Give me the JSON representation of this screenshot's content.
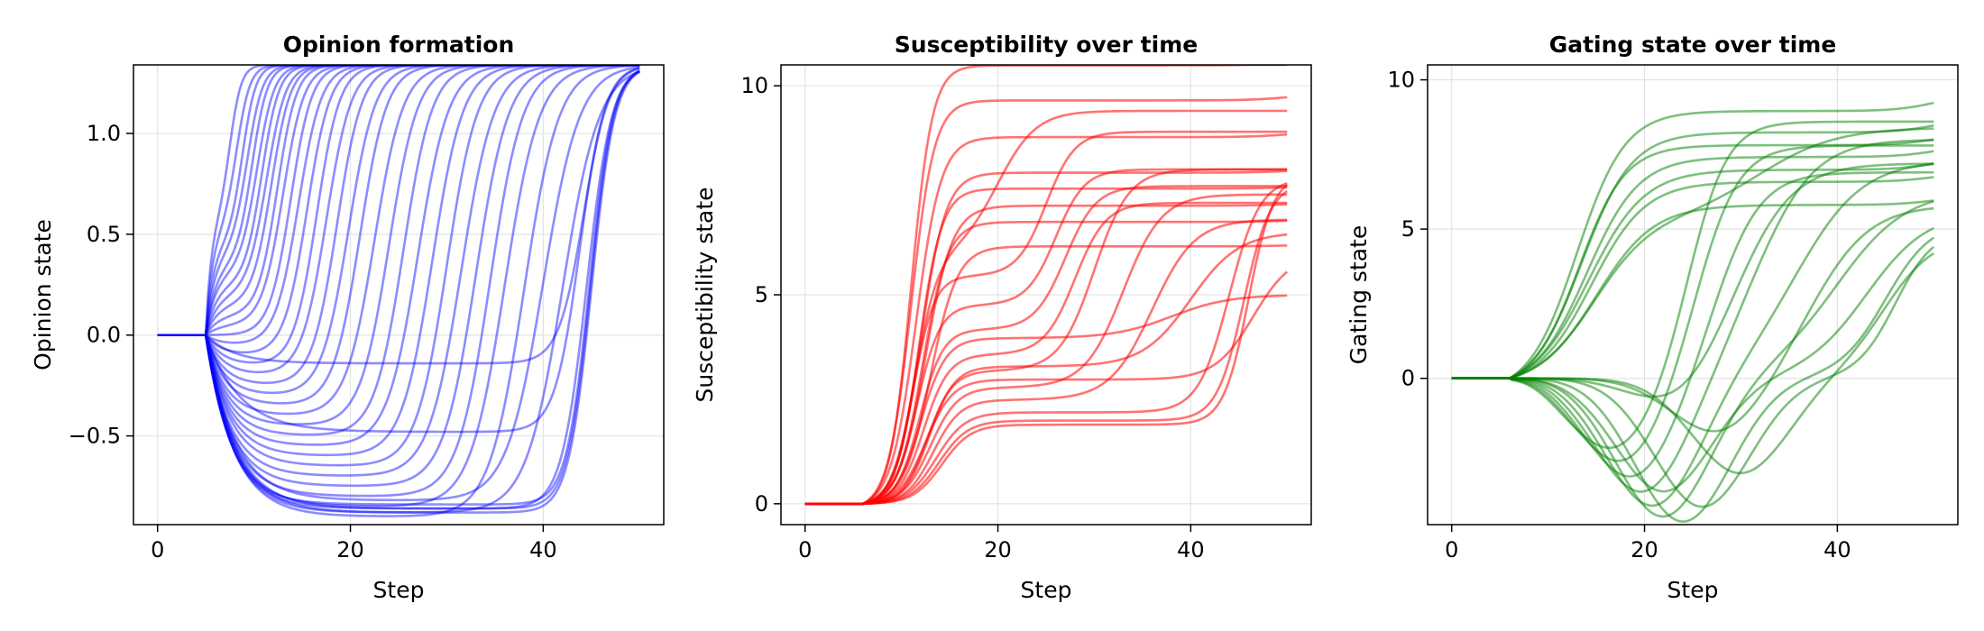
{
  "chart_data": [
    {
      "type": "line",
      "title": "Opinion formation",
      "xlabel": "Step",
      "ylabel": "Opinion state",
      "xlim": [
        -2.5,
        52.5
      ],
      "ylim": [
        -0.94,
        1.34
      ],
      "xticks": [
        0,
        20,
        40
      ],
      "xtick_labels": [
        "0",
        "20",
        "40"
      ],
      "yticks": [
        -0.5,
        0.0,
        0.5,
        1.0
      ],
      "ytick_labels": [
        "−0.5",
        "0.0",
        "0.5",
        "1.0"
      ],
      "grid": true,
      "line_color": "#0000ff",
      "line_opacity": 0.45,
      "n_steps": 50,
      "series": [
        {
          "onset": 5,
          "early_target": 0.55,
          "early_tau": 0.6,
          "plateau": 0.55,
          "final": 1.34,
          "switch_step": 7.5,
          "switch_width": 0.6
        },
        {
          "onset": 5,
          "early_target": 0.5,
          "early_tau": 0.7,
          "plateau": 0.5,
          "final": 1.34,
          "switch_step": 8.2,
          "switch_width": 0.7
        },
        {
          "onset": 5,
          "early_target": 0.45,
          "early_tau": 0.8,
          "plateau": 0.45,
          "final": 1.34,
          "switch_step": 8.8,
          "switch_width": 0.7
        },
        {
          "onset": 5,
          "early_target": 0.4,
          "early_tau": 0.9,
          "plateau": 0.4,
          "final": 1.34,
          "switch_step": 9.3,
          "switch_width": 0.8
        },
        {
          "onset": 5,
          "early_target": 0.35,
          "early_tau": 1.0,
          "plateau": 0.35,
          "final": 1.34,
          "switch_step": 9.8,
          "switch_width": 0.8
        },
        {
          "onset": 5,
          "early_target": 0.3,
          "early_tau": 1.0,
          "plateau": 0.3,
          "final": 1.34,
          "switch_step": 10.3,
          "switch_width": 0.9
        },
        {
          "onset": 5,
          "early_target": 0.25,
          "early_tau": 1.1,
          "plateau": 0.25,
          "final": 1.34,
          "switch_step": 10.8,
          "switch_width": 0.9
        },
        {
          "onset": 5,
          "early_target": 0.2,
          "early_tau": 1.2,
          "plateau": 0.2,
          "final": 1.34,
          "switch_step": 11.3,
          "switch_width": 1.0
        },
        {
          "onset": 5,
          "early_target": 0.15,
          "early_tau": 1.2,
          "plateau": 0.15,
          "final": 1.34,
          "switch_step": 11.8,
          "switch_width": 1.0
        },
        {
          "onset": 5,
          "early_target": 0.1,
          "early_tau": 1.3,
          "plateau": 0.1,
          "final": 1.34,
          "switch_step": 12.4,
          "switch_width": 1.0
        },
        {
          "onset": 5,
          "early_target": 0.05,
          "early_tau": 1.4,
          "plateau": 0.05,
          "final": 1.34,
          "switch_step": 13.0,
          "switch_width": 1.1
        },
        {
          "onset": 5,
          "early_target": 0.0,
          "early_tau": 1.5,
          "plateau": 0.0,
          "final": 1.34,
          "switch_step": 13.8,
          "switch_width": 1.1
        },
        {
          "onset": 5,
          "early_target": -0.05,
          "early_tau": 1.5,
          "plateau": -0.05,
          "final": 1.34,
          "switch_step": 14.6,
          "switch_width": 1.2
        },
        {
          "onset": 5,
          "early_target": -0.1,
          "early_tau": 1.6,
          "plateau": -0.1,
          "final": 1.34,
          "switch_step": 15.5,
          "switch_width": 1.2
        },
        {
          "onset": 5,
          "early_target": -0.15,
          "early_tau": 1.7,
          "plateau": -0.15,
          "final": 1.34,
          "switch_step": 16.5,
          "switch_width": 1.2
        },
        {
          "onset": 5,
          "early_target": -0.2,
          "early_tau": 1.8,
          "plateau": -0.2,
          "final": 1.34,
          "switch_step": 17.5,
          "switch_width": 1.3
        },
        {
          "onset": 5,
          "early_target": -0.25,
          "early_tau": 1.8,
          "plateau": -0.25,
          "final": 1.34,
          "switch_step": 18.6,
          "switch_width": 1.3
        },
        {
          "onset": 5,
          "early_target": -0.3,
          "early_tau": 1.9,
          "plateau": -0.3,
          "final": 1.34,
          "switch_step": 19.8,
          "switch_width": 1.4
        },
        {
          "onset": 5,
          "early_target": -0.35,
          "early_tau": 2.0,
          "plateau": -0.35,
          "final": 1.34,
          "switch_step": 21.0,
          "switch_width": 1.4
        },
        {
          "onset": 5,
          "early_target": -0.4,
          "early_tau": 2.0,
          "plateau": -0.4,
          "final": 1.34,
          "switch_step": 22.5,
          "switch_width": 1.5
        },
        {
          "onset": 5,
          "early_target": -0.45,
          "early_tau": 2.1,
          "plateau": -0.45,
          "final": 1.34,
          "switch_step": 24.0,
          "switch_width": 1.5
        },
        {
          "onset": 5,
          "early_target": -0.5,
          "early_tau": 2.2,
          "plateau": -0.5,
          "final": 1.34,
          "switch_step": 25.5,
          "switch_width": 1.5
        },
        {
          "onset": 5,
          "early_target": -0.55,
          "early_tau": 2.3,
          "plateau": -0.55,
          "final": 1.34,
          "switch_step": 27.0,
          "switch_width": 1.6
        },
        {
          "onset": 5,
          "early_target": -0.6,
          "early_tau": 2.4,
          "plateau": -0.6,
          "final": 1.34,
          "switch_step": 28.5,
          "switch_width": 1.6
        },
        {
          "onset": 5,
          "early_target": -0.65,
          "early_tau": 2.5,
          "plateau": -0.65,
          "final": 1.34,
          "switch_step": 30.0,
          "switch_width": 1.6
        },
        {
          "onset": 5,
          "early_target": -0.7,
          "early_tau": 2.5,
          "plateau": -0.7,
          "final": 1.34,
          "switch_step": 31.5,
          "switch_width": 1.7
        },
        {
          "onset": 5,
          "early_target": -0.75,
          "early_tau": 2.6,
          "plateau": -0.75,
          "final": 1.34,
          "switch_step": 33.0,
          "switch_width": 1.7
        },
        {
          "onset": 5,
          "early_target": -0.8,
          "early_tau": 2.7,
          "plateau": -0.8,
          "final": 1.34,
          "switch_step": 34.5,
          "switch_width": 1.7
        },
        {
          "onset": 5,
          "early_target": -0.85,
          "early_tau": 2.8,
          "plateau": -0.85,
          "final": 1.34,
          "switch_step": 36.0,
          "switch_width": 1.8
        },
        {
          "onset": 5,
          "early_target": -0.9,
          "early_tau": 2.9,
          "plateau": -0.9,
          "final": 1.34,
          "switch_step": 38.0,
          "switch_width": 1.8
        },
        {
          "onset": 5,
          "early_target": -0.82,
          "early_tau": 3.0,
          "plateau": -0.82,
          "final": 1.34,
          "switch_step": 40.0,
          "switch_width": 1.9
        },
        {
          "onset": 5,
          "early_target": -0.88,
          "early_tau": 3.0,
          "plateau": -0.88,
          "final": 1.34,
          "switch_step": 42.0,
          "switch_width": 1.9
        },
        {
          "onset": 5,
          "early_target": -0.86,
          "early_tau": 3.0,
          "plateau": -0.86,
          "final": 1.34,
          "switch_step": 44.5,
          "switch_width": 1.3
        },
        {
          "onset": 5,
          "early_target": -0.84,
          "early_tau": 2.6,
          "plateau": -0.84,
          "final": 1.34,
          "switch_step": 44.8,
          "switch_width": 1.2
        },
        {
          "onset": 5,
          "early_target": -0.86,
          "early_tau": 2.7,
          "plateau": -0.86,
          "final": 1.34,
          "switch_step": 44.9,
          "switch_width": 1.2
        },
        {
          "onset": 5,
          "early_target": -0.88,
          "early_tau": 2.8,
          "plateau": -0.88,
          "final": 1.34,
          "switch_step": 45.0,
          "switch_width": 1.2
        },
        {
          "onset": 5,
          "early_target": -0.14,
          "early_tau": 3.0,
          "plateau": -0.14,
          "final": 1.34,
          "switch_step": 44.2,
          "switch_width": 1.3
        },
        {
          "onset": 5,
          "early_target": -0.48,
          "early_tau": 3.5,
          "plateau": -0.48,
          "final": 1.34,
          "switch_step": 43.8,
          "switch_width": 1.3
        }
      ]
    },
    {
      "type": "line",
      "title": "Susceptibility over time",
      "xlabel": "Step",
      "ylabel": "Susceptibility state",
      "xlim": [
        -2.5,
        52.5
      ],
      "ylim": [
        -0.5,
        10.5
      ],
      "xticks": [
        0,
        20,
        40
      ],
      "xtick_labels": [
        "0",
        "20",
        "40"
      ],
      "yticks": [
        0,
        5,
        10
      ],
      "ytick_labels": [
        "0",
        "5",
        "10"
      ],
      "grid": true,
      "line_color": "#ff0000",
      "line_opacity": 0.55,
      "n_steps": 50,
      "series": [
        {
          "onset": 6,
          "mid": 11,
          "width": 1.2,
          "level": 9.8,
          "late_level": 9.8,
          "late_step": 50,
          "late_width": 2
        },
        {
          "onset": 6,
          "mid": 11.5,
          "width": 1.3,
          "level": 8.9,
          "late_level": 8.9,
          "late_step": 50,
          "late_width": 2
        },
        {
          "onset": 6,
          "mid": 12,
          "width": 1.3,
          "level": 8.0,
          "late_level": 8.0,
          "late_step": 50,
          "late_width": 2
        },
        {
          "onset": 6,
          "mid": 12.5,
          "width": 1.4,
          "level": 7.2,
          "late_level": 7.2,
          "late_step": 50,
          "late_width": 2
        },
        {
          "onset": 6,
          "mid": 13,
          "width": 1.4,
          "level": 6.2,
          "late_level": 6.2,
          "late_step": 50,
          "late_width": 2
        },
        {
          "onset": 6,
          "mid": 11,
          "width": 1.1,
          "level": 10.6,
          "late_level": 10.6,
          "late_step": 50,
          "late_width": 2
        },
        {
          "onset": 6,
          "mid": 11.8,
          "width": 1.2,
          "level": 7.6,
          "late_level": 7.6,
          "late_step": 50,
          "late_width": 2
        },
        {
          "onset": 6,
          "mid": 12.2,
          "width": 1.3,
          "level": 6.8,
          "late_level": 6.8,
          "late_step": 50,
          "late_width": 2
        },
        {
          "onset": 6,
          "mid": 11.2,
          "width": 1.1,
          "level": 5.5,
          "late_level": 8.9,
          "late_step": 25,
          "late_width": 1.5
        },
        {
          "onset": 6,
          "mid": 11.6,
          "width": 1.2,
          "level": 4.8,
          "late_level": 8.0,
          "late_step": 26,
          "late_width": 1.5
        },
        {
          "onset": 6,
          "mid": 11.9,
          "width": 1.2,
          "level": 4.2,
          "late_level": 7.6,
          "late_step": 27,
          "late_width": 1.6
        },
        {
          "onset": 6,
          "mid": 12.3,
          "width": 1.3,
          "level": 3.6,
          "late_level": 7.2,
          "late_step": 28,
          "late_width": 1.6
        },
        {
          "onset": 6,
          "mid": 12.7,
          "width": 1.3,
          "level": 3.2,
          "late_level": 8.0,
          "late_step": 30,
          "late_width": 1.8
        },
        {
          "onset": 6,
          "mid": 13.0,
          "width": 1.4,
          "level": 2.8,
          "late_level": 7.4,
          "late_step": 33,
          "late_width": 2.0
        },
        {
          "onset": 6,
          "mid": 13.3,
          "width": 1.4,
          "level": 2.5,
          "late_level": 6.8,
          "late_step": 36,
          "late_width": 2.2
        },
        {
          "onset": 6,
          "mid": 13.6,
          "width": 1.5,
          "level": 2.2,
          "late_level": 7.8,
          "late_step": 44,
          "late_width": 1.6
        },
        {
          "onset": 6,
          "mid": 13.9,
          "width": 1.5,
          "level": 2.0,
          "late_level": 7.7,
          "late_step": 45.5,
          "late_width": 1.4
        },
        {
          "onset": 6,
          "mid": 14.2,
          "width": 1.5,
          "level": 1.9,
          "late_level": 7.9,
          "late_step": 46,
          "late_width": 1.3
        },
        {
          "onset": 6,
          "mid": 12.5,
          "width": 1.4,
          "level": 3.0,
          "late_level": 6.0,
          "late_step": 46.5,
          "late_width": 2.0
        },
        {
          "onset": 6,
          "mid": 12.0,
          "width": 1.3,
          "level": 4.0,
          "late_level": 5.0,
          "late_step": 38,
          "late_width": 3.0
        },
        {
          "onset": 6,
          "mid": 11.4,
          "width": 1.2,
          "level": 6.0,
          "late_level": 9.4,
          "late_step": 20,
          "late_width": 2.0
        },
        {
          "onset": 6,
          "mid": 12.9,
          "width": 1.3,
          "level": 3.3,
          "late_level": 6.5,
          "late_step": 40,
          "late_width": 2.5
        }
      ]
    },
    {
      "type": "line",
      "title": "Gating state over time",
      "xlabel": "Step",
      "ylabel": "Gating state",
      "xlim": [
        -2.5,
        52.5
      ],
      "ylim": [
        -4.9,
        10.5
      ],
      "xticks": [
        0,
        20,
        40
      ],
      "xtick_labels": [
        "0",
        "20",
        "40"
      ],
      "yticks": [
        0,
        5,
        10
      ],
      "ytick_labels": [
        "0",
        "5",
        "10"
      ],
      "grid": true,
      "line_color": "#008000",
      "line_opacity": 0.5,
      "n_steps": 50,
      "series": [
        {
          "onset": 6,
          "mid": 13,
          "width": 2.5,
          "level": 9.5,
          "dip": 0,
          "dip_step": 20,
          "late_level": 9.5,
          "late_step": 50,
          "late_width": 2
        },
        {
          "onset": 6,
          "mid": 13.5,
          "width": 2.6,
          "level": 8.7,
          "dip": 0,
          "dip_step": 20,
          "late_level": 8.7,
          "late_step": 50,
          "late_width": 2
        },
        {
          "onset": 6,
          "mid": 14,
          "width": 2.7,
          "level": 7.8,
          "dip": 0,
          "dip_step": 20,
          "late_level": 7.8,
          "late_step": 50,
          "late_width": 2
        },
        {
          "onset": 6,
          "mid": 14.5,
          "width": 2.8,
          "level": 6.9,
          "dip": 0,
          "dip_step": 20,
          "late_level": 6.9,
          "late_step": 50,
          "late_width": 2
        },
        {
          "onset": 6,
          "mid": 15,
          "width": 3.0,
          "level": 6.1,
          "dip": 0,
          "dip_step": 20,
          "late_level": 6.1,
          "late_step": 50,
          "late_width": 2
        },
        {
          "onset": 6,
          "mid": 13.2,
          "width": 2.4,
          "level": 8.2,
          "dip": 0,
          "dip_step": 20,
          "late_level": 8.2,
          "late_step": 50,
          "late_width": 2
        },
        {
          "onset": 6,
          "mid": 14.2,
          "width": 2.9,
          "level": 7.4,
          "dip": 0,
          "dip_step": 20,
          "late_level": 7.4,
          "late_step": 50,
          "late_width": 2
        },
        {
          "onset": 6,
          "mid": 14.8,
          "width": 3.0,
          "level": 5.6,
          "dip": 0,
          "dip_step": 20,
          "late_level": 8.4,
          "late_step": 32,
          "late_width": 4
        },
        {
          "onset": 6,
          "mid": 12,
          "width": 3,
          "level": 0,
          "dip": -2.5,
          "dip_step": 17,
          "late_level": 8.6,
          "late_step": 25,
          "late_width": 2.0
        },
        {
          "onset": 6,
          "mid": 12,
          "width": 3,
          "level": 0,
          "dip": -3.0,
          "dip_step": 18,
          "late_level": 7.8,
          "late_step": 26,
          "late_width": 2.2
        },
        {
          "onset": 6,
          "mid": 12,
          "width": 3,
          "level": 0,
          "dip": -3.5,
          "dip_step": 19,
          "late_level": 6.9,
          "late_step": 28,
          "late_width": 2.4
        },
        {
          "onset": 6,
          "mid": 12,
          "width": 3,
          "level": 0,
          "dip": -4.0,
          "dip_step": 20,
          "late_level": 8.0,
          "late_step": 32,
          "late_width": 3.0
        },
        {
          "onset": 6,
          "mid": 12,
          "width": 3,
          "level": 0,
          "dip": -4.4,
          "dip_step": 21,
          "late_level": 7.3,
          "late_step": 36,
          "late_width": 3.4
        },
        {
          "onset": 6,
          "mid": 12,
          "width": 3,
          "level": 0,
          "dip": -4.7,
          "dip_step": 22,
          "late_level": 6.3,
          "late_step": 40,
          "late_width": 3.6
        },
        {
          "onset": 6,
          "mid": 12,
          "width": 3,
          "level": 0,
          "dip": -4.8,
          "dip_step": 24,
          "late_level": 5.3,
          "late_step": 45,
          "late_width": 2.4
        },
        {
          "onset": 6,
          "mid": 12,
          "width": 3,
          "level": 0,
          "dip": -4.3,
          "dip_step": 26,
          "late_level": 5.0,
          "late_step": 46,
          "late_width": 2.0
        },
        {
          "onset": 6,
          "mid": 12,
          "width": 3,
          "level": 0,
          "dip": -3.2,
          "dip_step": 30,
          "late_level": 4.8,
          "late_step": 45,
          "late_width": 2.6
        },
        {
          "onset": 6,
          "mid": 12,
          "width": 3,
          "level": 0,
          "dip": -2.0,
          "dip_step": 28,
          "late_level": 5.8,
          "late_step": 38,
          "late_width": 3.0
        },
        {
          "onset": 6,
          "mid": 12,
          "width": 3,
          "level": 0,
          "dip": -1.2,
          "dip_step": 24,
          "late_level": 7.2,
          "late_step": 30,
          "late_width": 3.0
        },
        {
          "onset": 6,
          "mid": 12,
          "width": 3,
          "level": 0,
          "dip": -3.8,
          "dip_step": 22,
          "late_level": 5.6,
          "late_step": 43,
          "late_width": 3.2
        }
      ]
    }
  ]
}
